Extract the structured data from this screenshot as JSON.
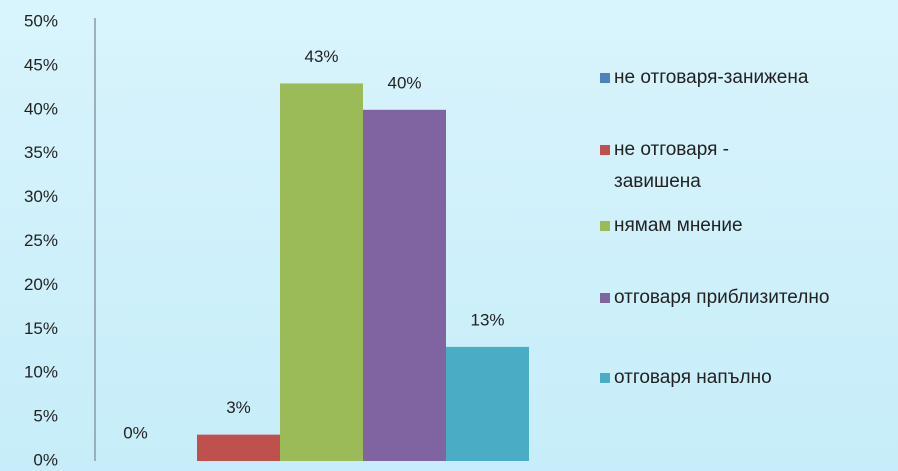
{
  "chart_data": {
    "type": "bar",
    "categories": [
      null
    ],
    "series": [
      {
        "name": "не отговаря-занижена",
        "color": "#4f81bd",
        "values": [
          0
        ],
        "value_labels": [
          "0%"
        ]
      },
      {
        "name": "не отговаря - завишена",
        "color": "#c0504d",
        "values": [
          3
        ],
        "value_labels": [
          "3%"
        ]
      },
      {
        "name": "нямам мнение",
        "color": "#9bbb59",
        "values": [
          43
        ],
        "value_labels": [
          "43%"
        ]
      },
      {
        "name": "отговаря приблизително",
        "color": "#8064a2",
        "values": [
          40
        ],
        "value_labels": [
          "40%"
        ]
      },
      {
        "name": "отговаря напълно",
        "color": "#4bacc6",
        "values": [
          13
        ],
        "value_labels": [
          "13%"
        ]
      }
    ],
    "ylim": [
      0,
      50
    ],
    "yticks": [
      {
        "value": 0,
        "label": "0%"
      },
      {
        "value": 5,
        "label": "5%"
      },
      {
        "value": 10,
        "label": "10%"
      },
      {
        "value": 15,
        "label": "15%"
      },
      {
        "value": 20,
        "label": "20%"
      },
      {
        "value": 25,
        "label": "25%"
      },
      {
        "value": 30,
        "label": "30%"
      },
      {
        "value": 35,
        "label": "35%"
      },
      {
        "value": 40,
        "label": "40%"
      },
      {
        "value": 45,
        "label": "45%"
      },
      {
        "value": 50,
        "label": "50%"
      }
    ],
    "grid": false,
    "legend": "right"
  }
}
